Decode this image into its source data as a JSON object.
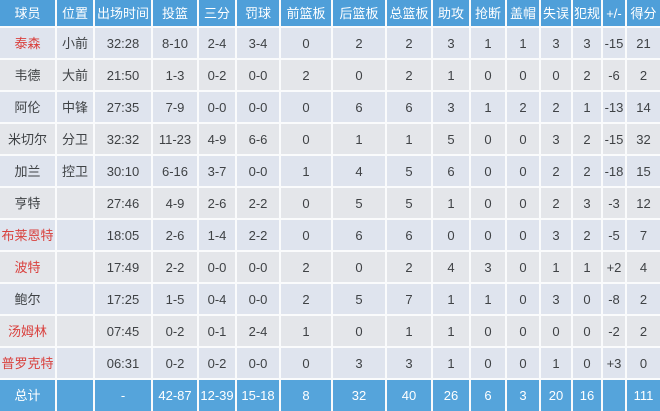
{
  "colors": {
    "header_bg": "#4f9fd9",
    "total_bg": "#55a4db",
    "row_bg_a": "#dfe4ee",
    "row_bg_b": "#e4e6ea",
    "separator": "#fafbfc",
    "text_dark": "#3f4245",
    "player_red": "#d9413e",
    "header_text": "#ffffff"
  },
  "chart_data": {
    "type": "table",
    "column_keys": [
      "player",
      "position",
      "minutes",
      "fg",
      "3pt",
      "ft",
      "oreb",
      "dreb",
      "treb",
      "ast",
      "stl",
      "blk",
      "to",
      "pf",
      "plus-minus",
      "pts"
    ],
    "columns": [
      "球员",
      "位置",
      "出场时间",
      "投篮",
      "三分",
      "罚球",
      "前篮板",
      "后篮板",
      "总篮板",
      "助攻",
      "抢断",
      "盖帽",
      "失误",
      "犯规",
      "+/-",
      "得分"
    ],
    "rows": [
      {
        "red": true,
        "values": [
          "泰森",
          "小前",
          "32:28",
          "8-10",
          "2-4",
          "3-4",
          "0",
          "2",
          "2",
          "3",
          "1",
          "1",
          "3",
          "3",
          "-15",
          "21"
        ]
      },
      {
        "red": false,
        "values": [
          "韦德",
          "大前",
          "21:50",
          "1-3",
          "0-2",
          "0-0",
          "2",
          "0",
          "2",
          "1",
          "0",
          "0",
          "0",
          "2",
          "-6",
          "2"
        ]
      },
      {
        "red": false,
        "values": [
          "阿伦",
          "中锋",
          "27:35",
          "7-9",
          "0-0",
          "0-0",
          "0",
          "6",
          "6",
          "3",
          "1",
          "2",
          "2",
          "1",
          "-13",
          "14"
        ]
      },
      {
        "red": false,
        "values": [
          "米切尔",
          "分卫",
          "32:32",
          "11-23",
          "4-9",
          "6-6",
          "0",
          "1",
          "1",
          "5",
          "0",
          "0",
          "3",
          "2",
          "-15",
          "32"
        ]
      },
      {
        "red": false,
        "values": [
          "加兰",
          "控卫",
          "30:10",
          "6-16",
          "3-7",
          "0-0",
          "1",
          "4",
          "5",
          "6",
          "0",
          "0",
          "2",
          "2",
          "-18",
          "15"
        ]
      },
      {
        "red": false,
        "values": [
          "亨特",
          "",
          "27:46",
          "4-9",
          "2-6",
          "2-2",
          "0",
          "5",
          "5",
          "1",
          "0",
          "0",
          "2",
          "3",
          "-3",
          "12"
        ]
      },
      {
        "red": true,
        "values": [
          "布莱恩特",
          "",
          "18:05",
          "2-6",
          "1-4",
          "2-2",
          "0",
          "6",
          "6",
          "0",
          "0",
          "0",
          "3",
          "2",
          "-5",
          "7"
        ]
      },
      {
        "red": true,
        "values": [
          "波特",
          "",
          "17:49",
          "2-2",
          "0-0",
          "0-0",
          "2",
          "0",
          "2",
          "4",
          "3",
          "0",
          "1",
          "1",
          "+2",
          "4"
        ]
      },
      {
        "red": false,
        "values": [
          "鲍尔",
          "",
          "17:25",
          "1-5",
          "0-4",
          "0-0",
          "2",
          "5",
          "7",
          "1",
          "1",
          "0",
          "3",
          "0",
          "-8",
          "2"
        ]
      },
      {
        "red": true,
        "values": [
          "汤姆林",
          "",
          "07:45",
          "0-2",
          "0-1",
          "2-4",
          "1",
          "0",
          "1",
          "1",
          "0",
          "0",
          "0",
          "0",
          "-2",
          "2"
        ]
      },
      {
        "red": true,
        "values": [
          "普罗克特",
          "",
          "06:31",
          "0-2",
          "0-2",
          "0-0",
          "0",
          "3",
          "3",
          "1",
          "0",
          "0",
          "1",
          "0",
          "+3",
          "0"
        ]
      }
    ],
    "total_row": {
      "values": [
        "总计",
        "",
        "-",
        "42-87",
        "12-39",
        "15-18",
        "8",
        "32",
        "40",
        "26",
        "6",
        "3",
        "20",
        "16",
        "",
        "111"
      ]
    }
  }
}
